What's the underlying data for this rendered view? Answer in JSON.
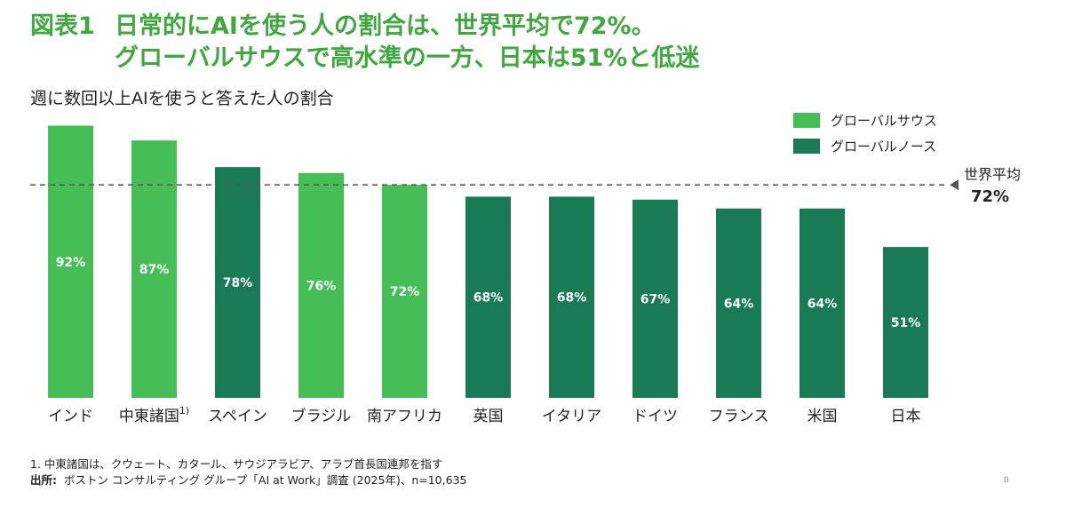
{
  "title": {
    "label": "図表1",
    "line1": "日常的にAIを使う人の割合は、世界平均で72%。",
    "line2": "グローバルサウスで高水準の一方、日本は51%と低迷"
  },
  "subtitle": "週に数回以上AIを使うと答えた人の割合",
  "legend": [
    {
      "name": "グローバルサウス",
      "color": "#45BF55"
    },
    {
      "name": "グローバルノース",
      "color": "#197A56"
    }
  ],
  "average": {
    "label": "世界平均",
    "value": 72,
    "value_text": "72%"
  },
  "chart_data": {
    "type": "bar",
    "title": "週に数回以上AIを使うと答えた人の割合",
    "categories": [
      "インド",
      "中東諸国",
      "スペイン",
      "ブラジル",
      "南アフリカ",
      "英国",
      "イタリア",
      "ドイツ",
      "フランス",
      "米国",
      "日本"
    ],
    "category_notes": [
      "",
      "1)",
      "",
      "",
      "",
      "",
      "",
      "",
      "",
      "",
      ""
    ],
    "values": [
      92,
      87,
      78,
      76,
      72,
      68,
      68,
      67,
      64,
      64,
      51
    ],
    "value_labels": [
      "92%",
      "87%",
      "78%",
      "76%",
      "72%",
      "68%",
      "68%",
      "67%",
      "64%",
      "64%",
      "51%"
    ],
    "groups": [
      "グローバルサウス",
      "グローバルサウス",
      "グローバルノース",
      "グローバルサウス",
      "グローバルサウス",
      "グローバルノース",
      "グローバルノース",
      "グローバルノース",
      "グローバルノース",
      "グローバルノース",
      "グローバルノース"
    ],
    "reference_line": {
      "label": "世界平均",
      "value": 72,
      "style": "dashed"
    },
    "ylim": [
      0,
      100
    ],
    "xlabel": "",
    "ylabel": "",
    "grid": false,
    "legend_position": "top-right"
  },
  "footnote": "1. 中東諸国は、クウェート、カタール、サウジアラビア、アラブ首長国連邦を指す",
  "source": {
    "label": "出所:",
    "text": "ボストン コンサルティング グループ「AI at Work」調査 (2025年)、n=10,635"
  },
  "page_number": "0"
}
